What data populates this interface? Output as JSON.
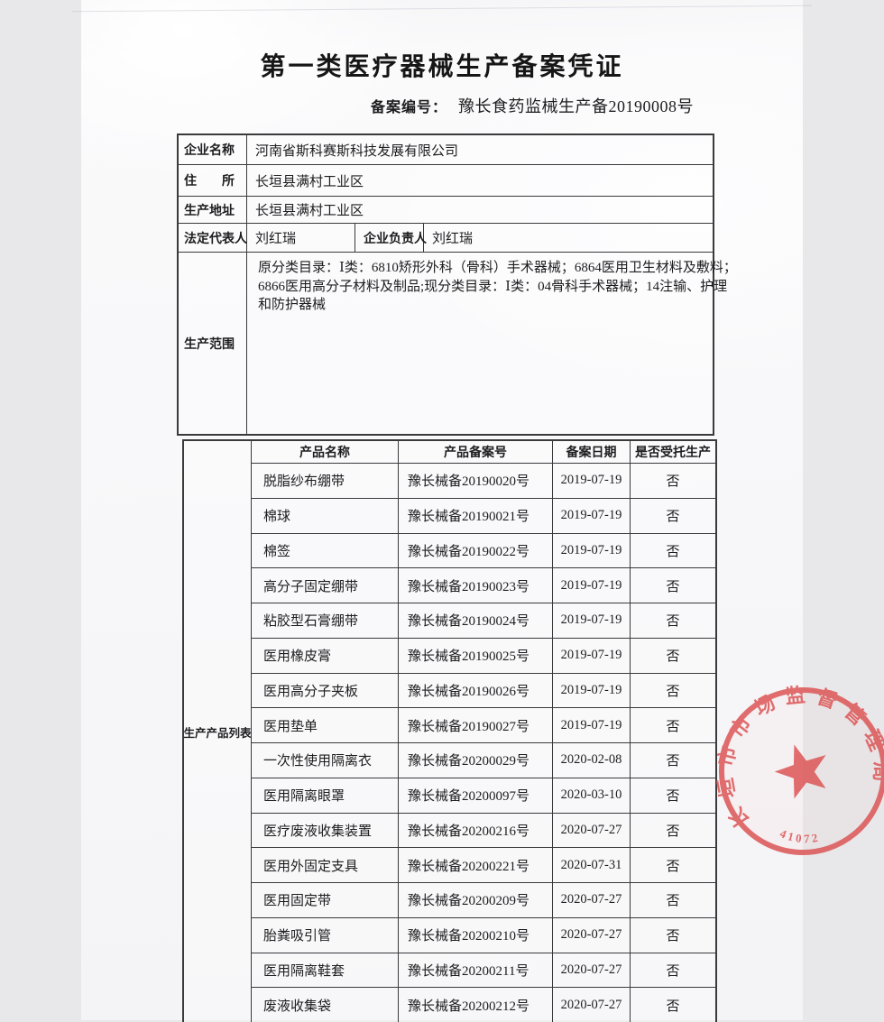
{
  "document": {
    "title": "第一类医疗器械生产备案凭证",
    "filing_no_label": "备案编号：",
    "filing_no_value": "豫长食药监械生产备20190008号"
  },
  "info": {
    "company_label": "企业名称",
    "company": "河南省斯科赛斯科技发展有限公司",
    "residence_label": "住　　所",
    "residence": "长垣县满村工业区",
    "address_label": "生产地址",
    "address": "长垣县满村工业区",
    "legal_rep_label": "法定代表人",
    "legal_rep": "刘红瑞",
    "manager_label": "企业负责人",
    "manager": "刘红瑞",
    "scope_label": "生产范围",
    "scope_lines": [
      "原分类目录：Ⅰ类：6810矫形外科（骨科）手术器械；6864医用卫生材料及敷料；",
      "6866医用高分子材料及制品;现分类目录：Ⅰ类：04骨科手术器械；14注输、护理",
      "和防护器械"
    ]
  },
  "products": {
    "section_label": "生产产品列表",
    "headers": {
      "name": "产品名称",
      "reg_no": "产品备案号",
      "date": "备案日期",
      "entrusted": "是否受托生产"
    },
    "rows": [
      {
        "name": "脱脂纱布绷带",
        "reg_no": "豫长械备20190020号",
        "date": "2019-07-19",
        "entrusted": "否"
      },
      {
        "name": "棉球",
        "reg_no": "豫长械备20190021号",
        "date": "2019-07-19",
        "entrusted": "否"
      },
      {
        "name": "棉签",
        "reg_no": "豫长械备20190022号",
        "date": "2019-07-19",
        "entrusted": "否"
      },
      {
        "name": "高分子固定绷带",
        "reg_no": "豫长械备20190023号",
        "date": "2019-07-19",
        "entrusted": "否"
      },
      {
        "name": "粘胶型石膏绷带",
        "reg_no": "豫长械备20190024号",
        "date": "2019-07-19",
        "entrusted": "否"
      },
      {
        "name": "医用橡皮膏",
        "reg_no": "豫长械备20190025号",
        "date": "2019-07-19",
        "entrusted": "否"
      },
      {
        "name": "医用高分子夹板",
        "reg_no": "豫长械备20190026号",
        "date": "2019-07-19",
        "entrusted": "否"
      },
      {
        "name": "医用垫单",
        "reg_no": "豫长械备20190027号",
        "date": "2019-07-19",
        "entrusted": "否"
      },
      {
        "name": "一次性使用隔离衣",
        "reg_no": "豫长械备20200029号",
        "date": "2020-02-08",
        "entrusted": "否"
      },
      {
        "name": "医用隔离眼罩",
        "reg_no": "豫长械备20200097号",
        "date": "2020-03-10",
        "entrusted": "否"
      },
      {
        "name": "医疗废液收集装置",
        "reg_no": "豫长械备20200216号",
        "date": "2020-07-27",
        "entrusted": "否"
      },
      {
        "name": "医用外固定支具",
        "reg_no": "豫长械备20200221号",
        "date": "2020-07-31",
        "entrusted": "否"
      },
      {
        "name": "医用固定带",
        "reg_no": "豫长械备20200209号",
        "date": "2020-07-27",
        "entrusted": "否"
      },
      {
        "name": "胎粪吸引管",
        "reg_no": "豫长械备20200210号",
        "date": "2020-07-27",
        "entrusted": "否"
      },
      {
        "name": "医用隔离鞋套",
        "reg_no": "豫长械备20200211号",
        "date": "2020-07-27",
        "entrusted": "否"
      },
      {
        "name": "废液收集袋",
        "reg_no": "豫长械备20200212号",
        "date": "2020-07-27",
        "entrusted": "否"
      }
    ]
  },
  "stamp": {
    "agency": "长垣市市场监督管理局",
    "code": "41072",
    "color": "#dd5a5a"
  }
}
